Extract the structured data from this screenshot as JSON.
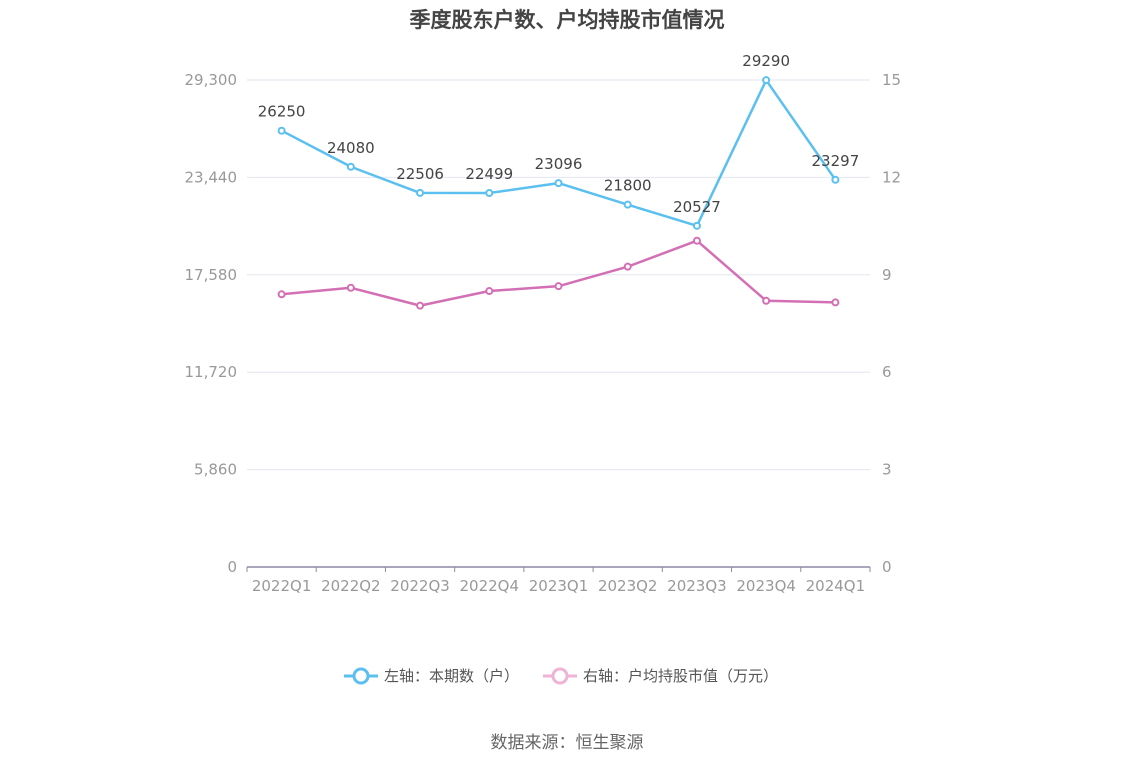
{
  "chart_data": {
    "type": "line",
    "title": "季度股东户数、户均持股市值情况",
    "categories": [
      "2022Q1",
      "2022Q2",
      "2022Q3",
      "2022Q4",
      "2023Q1",
      "2023Q2",
      "2023Q3",
      "2023Q4",
      "2024Q1"
    ],
    "y_left": {
      "ticks": [
        "0",
        "5,860",
        "11,720",
        "17,580",
        "23,440",
        "29,300"
      ],
      "range": [
        0,
        29300
      ]
    },
    "y_right": {
      "ticks": [
        "0",
        "3",
        "6",
        "9",
        "12",
        "15"
      ],
      "range": [
        0,
        15
      ]
    },
    "grid": true,
    "legend_position": "bottom",
    "series": [
      {
        "name": "左轴：本期数（户）",
        "axis": "left",
        "color": "#5bc0f0",
        "values": [
          26250,
          24080,
          22506,
          22499,
          23096,
          21800,
          20527,
          29290,
          23297
        ],
        "labels": [
          "26250",
          "24080",
          "22506",
          "22499",
          "23096",
          "21800",
          "20527",
          "29290",
          "23297"
        ]
      },
      {
        "name": "右轴：户均持股市值（万元）",
        "axis": "right",
        "color": "#d36fb4",
        "values": [
          8.4,
          8.6,
          8.05,
          8.5,
          8.65,
          9.25,
          10.05,
          8.2,
          8.15
        ]
      }
    ],
    "source": "数据来源：恒生聚源"
  }
}
